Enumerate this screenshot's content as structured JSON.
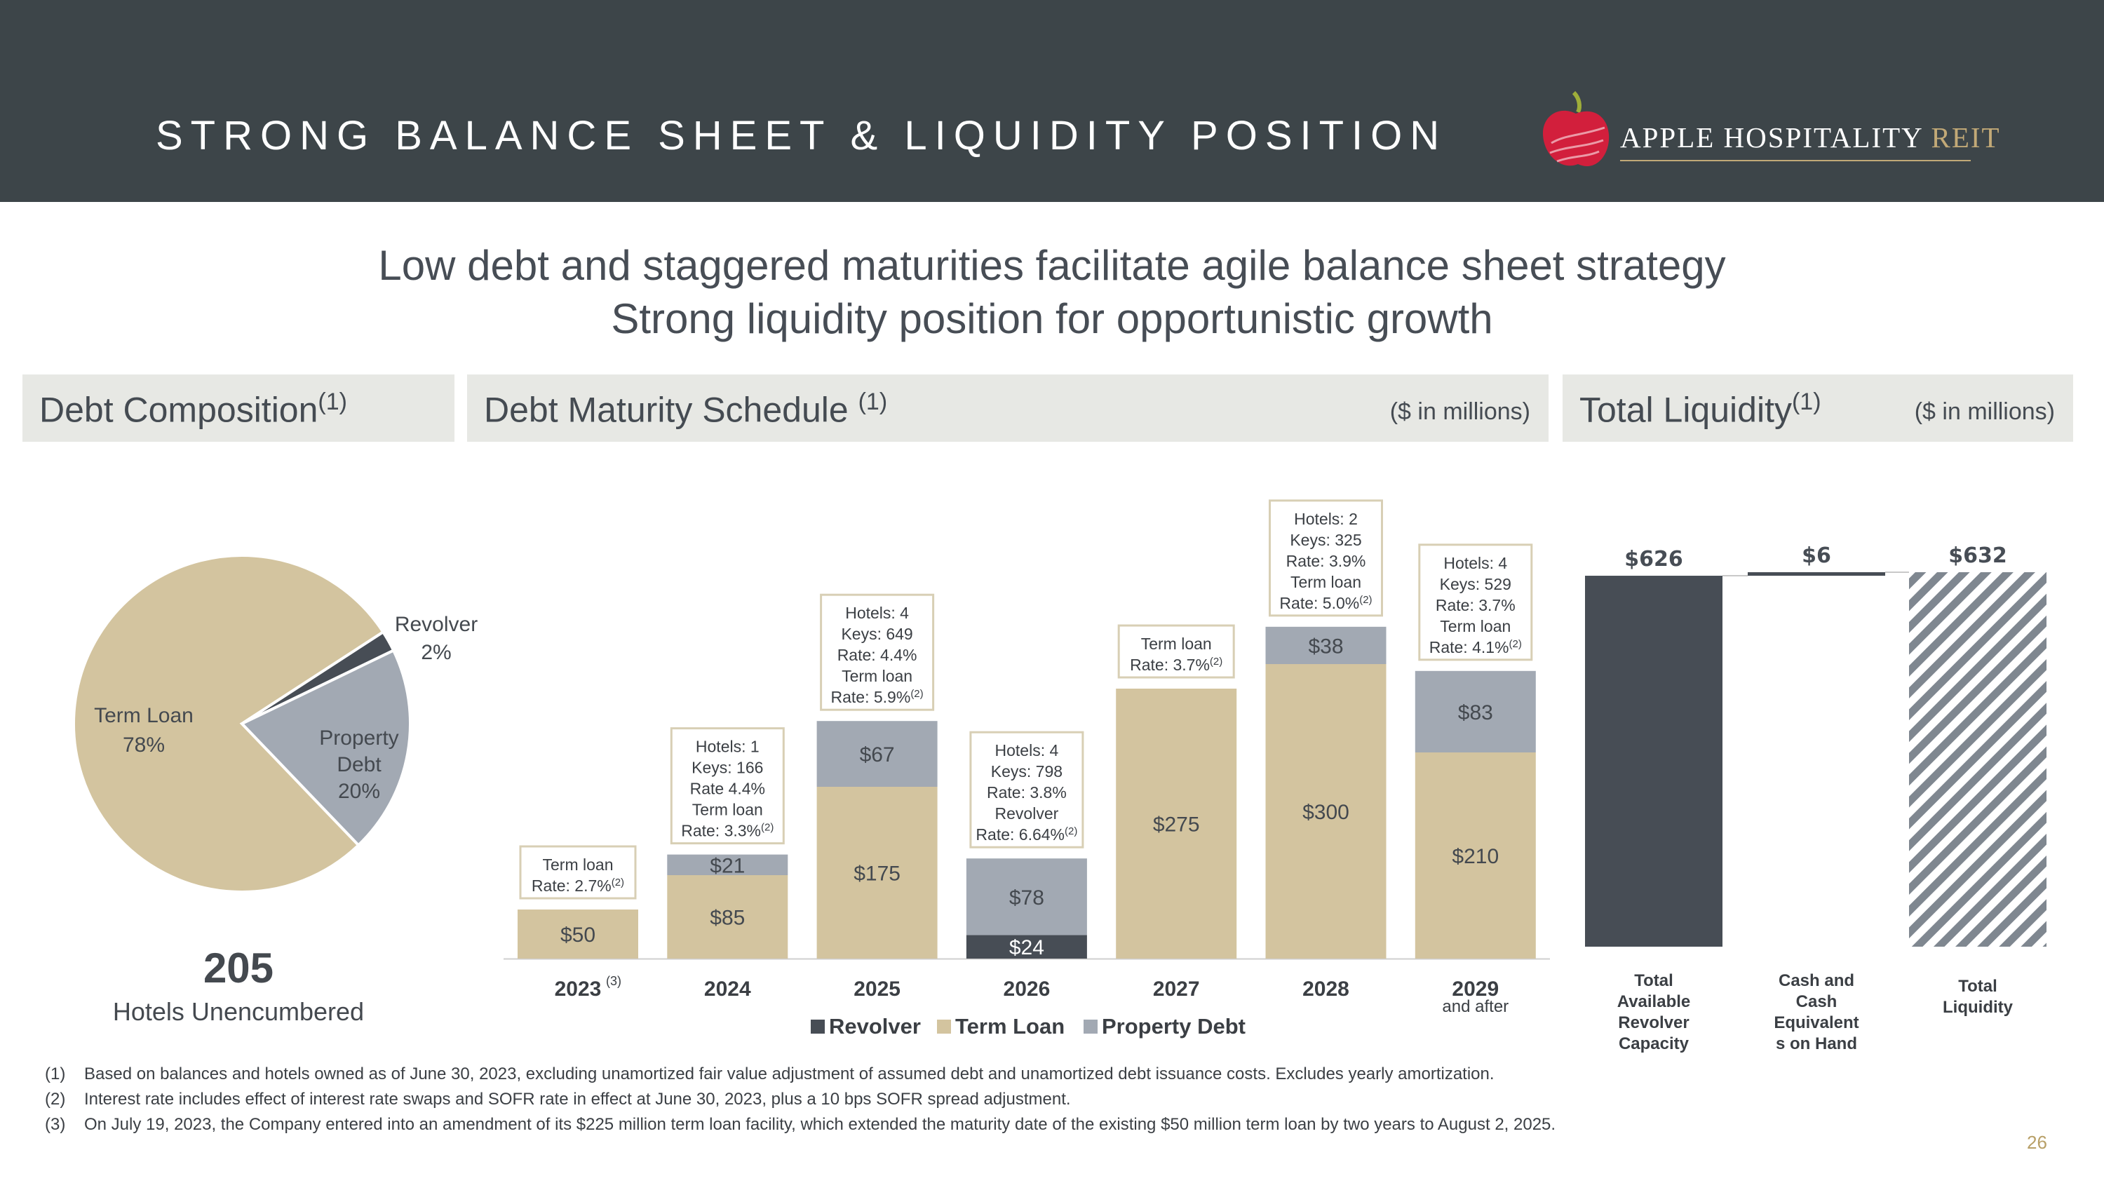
{
  "header": {
    "title": "STRONG BALANCE SHEET & LIQUIDITY POSITION"
  },
  "logo": {
    "name": "APPLE HOSPITALITY",
    "suffix": "REIT",
    "colors": {
      "apple": "#d21f3c",
      "leaf": "#9fae3a",
      "gold": "#c2a977"
    }
  },
  "headline": {
    "line1": "Low debt and staggered maturities facilitate agile balance sheet strategy",
    "line2": "Strong liquidity position for opportunistic growth"
  },
  "colors": {
    "header_bg": "#3d4549",
    "tan": "#d3c49f",
    "gray": "#a2a9b3",
    "dark": "#474d55",
    "panel_bg": "#e7e8e4"
  },
  "debt_composition": {
    "title": "Debt Composition",
    "title_sup": "(1)",
    "hotels_unencumbered_value": "205",
    "hotels_unencumbered_label": "Hotels Unencumbered"
  },
  "maturity": {
    "title": "Debt Maturity Schedule",
    "title_sup": "(1)",
    "unit": "($ in millions)"
  },
  "liquidity": {
    "title": "Total Liquidity",
    "title_sup": "(1)",
    "unit": "($ in millions)"
  },
  "chart_data": [
    {
      "type": "pie",
      "title": "Debt Composition",
      "slices": [
        {
          "name": "Term Loan",
          "value": 78,
          "label": "Term Loan",
          "pct": "78%",
          "color": "#d3c49f"
        },
        {
          "name": "Revolver",
          "value": 2,
          "label": "Revolver",
          "pct": "2%",
          "color": "#474d55"
        },
        {
          "name": "Property Debt",
          "value": 20,
          "label_lines": [
            "Property",
            "Debt"
          ],
          "pct": "20%",
          "color": "#a2a9b3"
        }
      ]
    },
    {
      "type": "bar",
      "stacked": true,
      "title": "Debt Maturity Schedule",
      "categories": [
        "2023",
        "2024",
        "2025",
        "2026",
        "2027",
        "2028",
        "2029"
      ],
      "category_sups": [
        "(3)",
        "",
        "",
        "",
        "",
        "",
        ""
      ],
      "category_sublabels": [
        "",
        "",
        "",
        "",
        "",
        "",
        "and after"
      ],
      "ylim": [
        0,
        390
      ],
      "series": [
        {
          "name": "Revolver",
          "color": "#474d55",
          "values": [
            0,
            0,
            0,
            24,
            0,
            0,
            0
          ],
          "labels": [
            "",
            "",
            "",
            "$24",
            "",
            "",
            ""
          ]
        },
        {
          "name": "Term Loan",
          "color": "#d3c49f",
          "values": [
            50,
            85,
            175,
            0,
            275,
            300,
            210
          ],
          "labels": [
            "$50",
            "$85",
            "$175",
            "",
            "$275",
            "$300",
            "$210"
          ]
        },
        {
          "name": "Property Debt",
          "color": "#a2a9b3",
          "values": [
            0,
            21,
            67,
            78,
            0,
            38,
            83
          ],
          "labels": [
            "",
            "$21",
            "$67",
            "$78",
            "",
            "$38",
            "$83"
          ]
        }
      ],
      "annotations": [
        [
          "Term loan",
          "Rate: 2.7%|(2)"
        ],
        [
          "Hotels: 1",
          "Keys: 166",
          "Rate 4.4%",
          "Term loan",
          "Rate: 3.3%|(2)"
        ],
        [
          "Hotels: 4",
          "Keys: 649",
          "Rate: 4.4%",
          "Term loan",
          "Rate: 5.9%|(2)"
        ],
        [
          "Hotels: 4",
          "Keys: 798",
          "Rate: 3.8%",
          "Revolver",
          "Rate: 6.64%|(2)"
        ],
        [
          "Term loan",
          "Rate: 3.7%|(2)"
        ],
        [
          "Hotels: 2",
          "Keys: 325",
          "Rate: 3.9%",
          "Term loan",
          "Rate: 5.0%|(2)"
        ],
        [
          "Hotels: 4",
          "Keys: 529",
          "Rate: 3.7%",
          "Term loan",
          "Rate: 4.1%|(2)"
        ]
      ],
      "legend": [
        "Revolver",
        "Term Loan",
        "Property Debt"
      ]
    },
    {
      "type": "bar",
      "subtype": "waterfall",
      "title": "Total Liquidity",
      "ylim": [
        0,
        660
      ],
      "categories": [
        [
          "Total",
          "Available",
          "Revolver",
          "Capacity"
        ],
        [
          "Cash and",
          "Cash",
          "Equivalent",
          "s on Hand"
        ],
        [
          "Total",
          "Liquidity"
        ]
      ],
      "values": [
        626,
        6,
        632
      ],
      "labels": [
        "$626",
        "$6",
        "$632"
      ]
    }
  ],
  "footnotes": [
    {
      "num": "(1)",
      "text": "Based on balances and hotels owned as of June 30, 2023, excluding unamortized fair value adjustment of assumed debt and unamortized debt issuance costs. Excludes yearly amortization."
    },
    {
      "num": "(2)",
      "text": "Interest rate includes effect of interest rate swaps and SOFR rate in effect at June 30, 2023, plus a 10 bps SOFR spread adjustment."
    },
    {
      "num": "(3)",
      "text": "On July 19, 2023, the Company entered into an amendment of its $225 million term loan facility, which extended the maturity date of the existing $50 million term loan by two years to August 2, 2025."
    }
  ],
  "page_number": "26"
}
